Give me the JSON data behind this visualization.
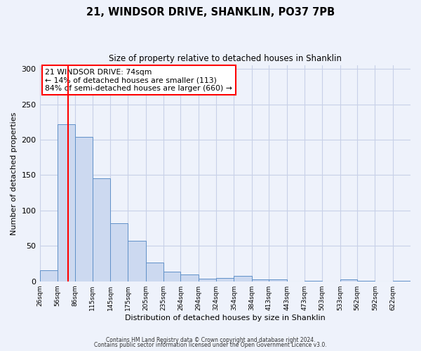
{
  "title": "21, WINDSOR DRIVE, SHANKLIN, PO37 7PB",
  "subtitle": "Size of property relative to detached houses in Shanklin",
  "xlabel": "Distribution of detached houses by size in Shanklin",
  "ylabel": "Number of detached properties",
  "bin_labels": [
    "26sqm",
    "56sqm",
    "86sqm",
    "115sqm",
    "145sqm",
    "175sqm",
    "205sqm",
    "235sqm",
    "264sqm",
    "294sqm",
    "324sqm",
    "354sqm",
    "384sqm",
    "413sqm",
    "443sqm",
    "473sqm",
    "503sqm",
    "533sqm",
    "562sqm",
    "592sqm",
    "622sqm"
  ],
  "bar_values": [
    16,
    222,
    204,
    145,
    82,
    57,
    26,
    14,
    10,
    4,
    5,
    8,
    3,
    3,
    0,
    1,
    0,
    3,
    1,
    0,
    1
  ],
  "bar_color": "#ccd9f0",
  "bar_edge_color": "#6090c8",
  "red_line_x": 74,
  "bin_edges": [
    26,
    56,
    86,
    115,
    145,
    175,
    205,
    235,
    264,
    294,
    324,
    354,
    384,
    413,
    443,
    473,
    503,
    533,
    562,
    592,
    622,
    652
  ],
  "ylim": [
    0,
    305
  ],
  "yticks": [
    0,
    50,
    100,
    150,
    200,
    250,
    300
  ],
  "annotation_line1": "21 WINDSOR DRIVE: 74sqm",
  "annotation_line2": "← 14% of detached houses are smaller (113)",
  "annotation_line3": "84% of semi-detached houses are larger (660) →",
  "annotation_box_color": "white",
  "annotation_box_edge_color": "red",
  "footer_line1": "Contains HM Land Registry data © Crown copyright and database right 2024.",
  "footer_line2": "Contains public sector information licensed under the Open Government Licence v3.0.",
  "background_color": "#eef2fb",
  "grid_color": "#c8d0e8"
}
